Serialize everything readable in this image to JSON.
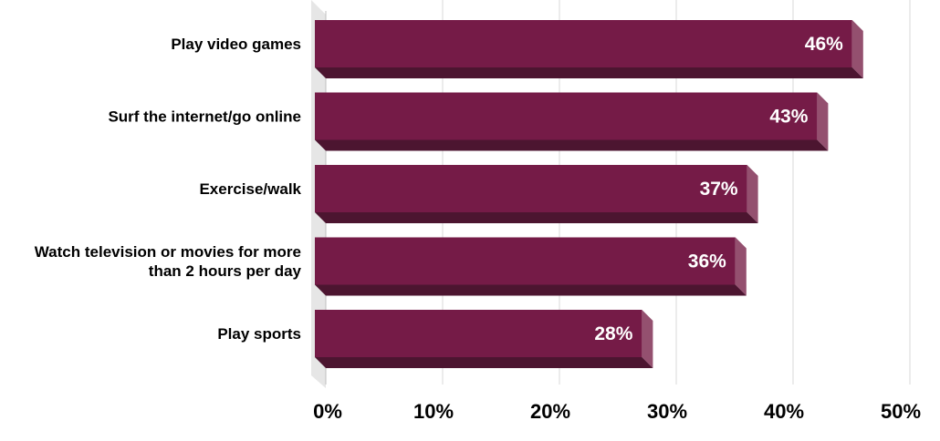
{
  "chart_data": {
    "type": "bar",
    "orientation": "horizontal",
    "categories": [
      [
        "Play video games"
      ],
      [
        "Surf the internet/go online"
      ],
      [
        "Exercise/walk"
      ],
      [
        "Watch television or movies for more",
        "than 2 hours per day"
      ],
      [
        "Play sports"
      ]
    ],
    "values": [
      46,
      43,
      37,
      36,
      28
    ],
    "value_labels": [
      "46%",
      "43%",
      "37%",
      "36%",
      "28%"
    ],
    "xlim": [
      0,
      50
    ],
    "xticks": [
      0,
      10,
      20,
      30,
      40,
      50
    ],
    "xtick_labels": [
      "0%",
      "10%",
      "20%",
      "30%",
      "40%",
      "50%"
    ],
    "title": "",
    "xlabel": "",
    "ylabel": "",
    "grid": true,
    "style": "3d",
    "colors": {
      "bar_front": "#751b47",
      "bar_side": "#94506f",
      "bar_bottom": "#4c1530",
      "wall": "#e6e6e6",
      "grid": "#d9d9d9"
    }
  }
}
